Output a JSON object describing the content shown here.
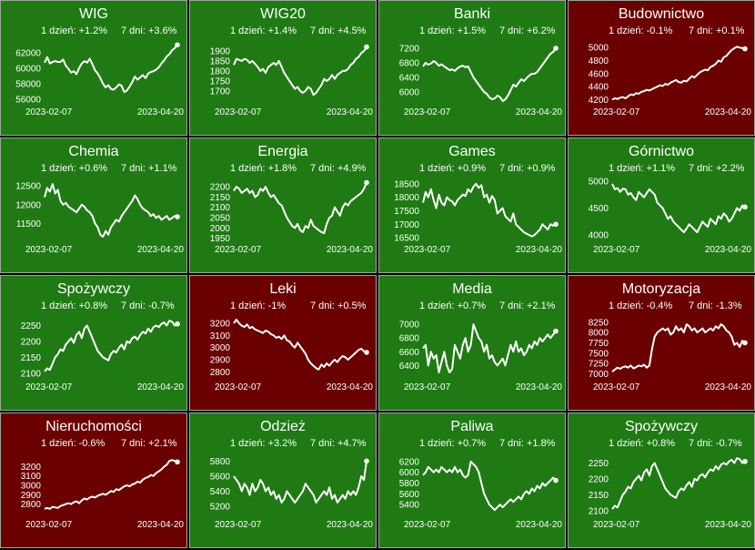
{
  "colors": {
    "up": "#1f7a14",
    "down": "#6a0000",
    "line": "#ffffff",
    "border": "#9aa79a"
  },
  "chart_data": [
    {
      "type": "line",
      "title": "WIG",
      "change_1d": "1 dzień: +1.2%",
      "change_7d": "7 dni: +3.6%",
      "direction": "up",
      "ylim": [
        55500,
        63500
      ],
      "yticks": [
        56000,
        58000,
        60000,
        62000
      ],
      "ytick_labels": [
        "56000",
        "58000",
        "60000",
        "62000"
      ],
      "x_start": "2023-02-07",
      "x_end": "2023-04-20",
      "values": [
        60700,
        61400,
        60600,
        60800,
        60900,
        60800,
        60800,
        61100,
        60300,
        59900,
        59400,
        59600,
        59200,
        60000,
        60600,
        60900,
        60700,
        61200,
        60500,
        59700,
        59300,
        58700,
        58000,
        57500,
        57800,
        57300,
        57200,
        57500,
        57900,
        57700,
        56900,
        57100,
        57600,
        58200,
        58900,
        58500,
        58800,
        59100,
        58700,
        59300,
        59500,
        59600,
        59800,
        60100,
        60600,
        61000,
        61500,
        61800,
        62300,
        62600,
        63000
      ]
    },
    {
      "type": "line",
      "title": "WIG20",
      "change_1d": "1 dzień: +1.4%",
      "change_7d": "7 dni: +4.5%",
      "direction": "up",
      "ylim": [
        1640,
        1950
      ],
      "yticks": [
        1700,
        1750,
        1800,
        1850,
        1900
      ],
      "ytick_labels": [
        "1700",
        "1750",
        "1800",
        "1850",
        "1900"
      ],
      "x_start": "2023-02-07",
      "x_end": "2023-04-20",
      "values": [
        1830,
        1860,
        1855,
        1850,
        1860,
        1855,
        1840,
        1850,
        1835,
        1820,
        1800,
        1810,
        1790,
        1820,
        1830,
        1840,
        1830,
        1850,
        1820,
        1790,
        1770,
        1750,
        1730,
        1710,
        1720,
        1700,
        1690,
        1700,
        1720,
        1710,
        1680,
        1690,
        1710,
        1730,
        1760,
        1750,
        1760,
        1780,
        1760,
        1780,
        1790,
        1800,
        1800,
        1810,
        1830,
        1840,
        1860,
        1870,
        1890,
        1900,
        1920
      ]
    },
    {
      "type": "line",
      "title": "Banki",
      "change_1d": "1 dzień: +1.5%",
      "change_7d": "7 dni: +6.2%",
      "direction": "up",
      "ylim": [
        5700,
        7400
      ],
      "yticks": [
        6000,
        6400,
        6800,
        7200
      ],
      "ytick_labels": [
        "6000",
        "6400",
        "6800",
        "7200"
      ],
      "x_start": "2023-02-07",
      "x_end": "2023-04-20",
      "values": [
        6700,
        6800,
        6750,
        6780,
        6850,
        6800,
        6720,
        6760,
        6700,
        6650,
        6600,
        6620,
        6580,
        6650,
        6700,
        6720,
        6680,
        6700,
        6550,
        6400,
        6300,
        6200,
        6100,
        6000,
        5950,
        5850,
        5800,
        5820,
        5900,
        5860,
        5750,
        5800,
        5900,
        6050,
        6200,
        6150,
        6250,
        6350,
        6300,
        6380,
        6450,
        6500,
        6500,
        6550,
        6650,
        6750,
        6850,
        6950,
        7050,
        7100,
        7200
      ]
    },
    {
      "type": "line",
      "title": "Budownictwo",
      "change_1d": "1 dzień: -0.1%",
      "change_7d": "7 dni: +0.1%",
      "direction": "down",
      "ylim": [
        4150,
        5100
      ],
      "yticks": [
        4200,
        4400,
        4600,
        4800,
        5000
      ],
      "ytick_labels": [
        "4200",
        "4400",
        "4600",
        "4800",
        "5000"
      ],
      "x_start": "2023-02-07",
      "x_end": "2023-04-20",
      "values": [
        4200,
        4220,
        4210,
        4230,
        4240,
        4220,
        4250,
        4280,
        4270,
        4300,
        4290,
        4320,
        4330,
        4350,
        4340,
        4360,
        4380,
        4400,
        4420,
        4410,
        4440,
        4430,
        4460,
        4480,
        4500,
        4470,
        4460,
        4490,
        4480,
        4520,
        4560,
        4540,
        4580,
        4620,
        4640,
        4660,
        4650,
        4700,
        4720,
        4750,
        4800,
        4780,
        4850,
        4870,
        4920,
        4960,
        4990,
        5010,
        5000,
        4990,
        4980
      ]
    },
    {
      "type": "line",
      "title": "Chemia",
      "change_1d": "1 dzień: +0.6%",
      "change_7d": "7 dni: +1.1%",
      "direction": "up",
      "ylim": [
        11050,
        12700
      ],
      "yticks": [
        11500,
        12000,
        12500
      ],
      "ytick_labels": [
        "11500",
        "12000",
        "12500"
      ],
      "x_start": "2023-02-07",
      "x_end": "2023-04-20",
      "values": [
        12200,
        12450,
        12350,
        12550,
        12300,
        12400,
        12100,
        12000,
        12050,
        11950,
        11900,
        11850,
        11800,
        11900,
        12000,
        11950,
        11850,
        11800,
        11700,
        11500,
        11400,
        11200,
        11150,
        11300,
        11200,
        11400,
        11500,
        11600,
        11550,
        11700,
        11800,
        11900,
        12000,
        12100,
        12250,
        12150,
        12000,
        11900,
        11850,
        11800,
        11700,
        11750,
        11650,
        11700,
        11600,
        11650,
        11700,
        11600,
        11650,
        11700,
        11680
      ]
    },
    {
      "type": "line",
      "title": "Energia",
      "change_1d": "1 dzień: +1.8%",
      "change_7d": "7 dni: +4.9%",
      "direction": "up",
      "ylim": [
        1940,
        2240
      ],
      "yticks": [
        1950,
        2000,
        2050,
        2100,
        2150,
        2200
      ],
      "ytick_labels": [
        "1950",
        "2000",
        "2050",
        "2100",
        "2150",
        "2200"
      ],
      "x_start": "2023-02-07",
      "x_end": "2023-04-20",
      "values": [
        2180,
        2200,
        2190,
        2170,
        2180,
        2190,
        2170,
        2180,
        2150,
        2160,
        2190,
        2180,
        2200,
        2170,
        2150,
        2160,
        2140,
        2120,
        2110,
        2080,
        2050,
        2030,
        2010,
        2000,
        2020,
        1990,
        1980,
        2010,
        2000,
        2040,
        2010,
        2000,
        1990,
        1980,
        1975,
        2020,
        2050,
        2060,
        2100,
        2080,
        2060,
        2100,
        2120,
        2110,
        2130,
        2140,
        2150,
        2160,
        2170,
        2190,
        2220
      ]
    },
    {
      "type": "line",
      "title": "Games",
      "change_1d": "1 dzień: +0.9%",
      "change_7d": "7 dni: +0.9%",
      "direction": "up",
      "ylim": [
        16400,
        18700
      ],
      "yticks": [
        16500,
        17000,
        17500,
        18000,
        18500
      ],
      "ytick_labels": [
        "16500",
        "17000",
        "17500",
        "18000",
        "18500"
      ],
      "x_start": "2023-02-07",
      "x_end": "2023-04-20",
      "values": [
        17800,
        18200,
        18000,
        18300,
        17900,
        17600,
        18100,
        17800,
        17700,
        18000,
        17900,
        17850,
        17700,
        17900,
        18000,
        18100,
        18050,
        18300,
        18200,
        18400,
        18500,
        18350,
        18450,
        18000,
        18100,
        17800,
        18050,
        17900,
        17400,
        17500,
        17600,
        17300,
        17200,
        17100,
        17400,
        17000,
        16900,
        16800,
        16700,
        16650,
        16600,
        16550,
        16600,
        16700,
        16800,
        17000,
        16900,
        16800,
        17000,
        16950,
        17000
      ]
    },
    {
      "type": "line",
      "title": "Górnictwo",
      "change_1d": "1 dzień: +1.1%",
      "change_7d": "7 dni: +2.2%",
      "direction": "up",
      "ylim": [
        3900,
        5050
      ],
      "yticks": [
        4000,
        4500,
        5000
      ],
      "ytick_labels": [
        "4000",
        "4500",
        "5000"
      ],
      "x_start": "2023-02-07",
      "x_end": "2023-04-20",
      "values": [
        4950,
        4850,
        4870,
        4800,
        4860,
        4850,
        4750,
        4780,
        4700,
        4650,
        4800,
        4750,
        4700,
        4780,
        4850,
        4800,
        4750,
        4600,
        4550,
        4500,
        4400,
        4300,
        4350,
        4250,
        4200,
        4150,
        4100,
        4050,
        4120,
        4200,
        4150,
        4100,
        4050,
        4150,
        4250,
        4200,
        4150,
        4300,
        4250,
        4200,
        4350,
        4300,
        4400,
        4350,
        4250,
        4300,
        4400,
        4500,
        4450,
        4550,
        4520
      ]
    },
    {
      "type": "line",
      "title": "Spożywczy",
      "change_1d": "1 dzień: +0.8%",
      "change_7d": "7 dni: -0.7%",
      "direction": "up",
      "ylim": [
        2085,
        2280
      ],
      "yticks": [
        2100,
        2150,
        2200,
        2250
      ],
      "ytick_labels": [
        "2100",
        "2150",
        "2200",
        "2250"
      ],
      "x_start": "2023-02-07",
      "x_end": "2023-04-20",
      "values": [
        2105,
        2115,
        2110,
        2130,
        2150,
        2160,
        2175,
        2170,
        2190,
        2200,
        2210,
        2195,
        2220,
        2230,
        2210,
        2240,
        2250,
        2230,
        2210,
        2190,
        2170,
        2160,
        2150,
        2145,
        2140,
        2160,
        2170,
        2165,
        2180,
        2190,
        2175,
        2200,
        2195,
        2210,
        2215,
        2205,
        2220,
        2230,
        2225,
        2240,
        2230,
        2245,
        2250,
        2245,
        2255,
        2260,
        2250,
        2265,
        2262,
        2250,
        2255
      ]
    },
    {
      "type": "line",
      "title": "Leki",
      "change_1d": "1 dzień: -1%",
      "change_7d": "7 dni: +0.5%",
      "direction": "down",
      "ylim": [
        2750,
        3260
      ],
      "yticks": [
        2800,
        2900,
        3000,
        3100,
        3200
      ],
      "ytick_labels": [
        "2800",
        "2900",
        "3000",
        "3100",
        "3200"
      ],
      "x_start": "2023-02-07",
      "x_end": "2023-04-20",
      "values": [
        3200,
        3230,
        3200,
        3180,
        3170,
        3190,
        3160,
        3170,
        3150,
        3140,
        3130,
        3120,
        3140,
        3130,
        3110,
        3100,
        3080,
        3090,
        3070,
        3100,
        3060,
        3050,
        3020,
        3000,
        3040,
        3010,
        2980,
        2950,
        2900,
        2870,
        2850,
        2830,
        2820,
        2860,
        2840,
        2870,
        2850,
        2880,
        2900,
        2880,
        2910,
        2930,
        2920,
        2900,
        2920,
        2940,
        2960,
        2980,
        2990,
        2970,
        2960
      ]
    },
    {
      "type": "line",
      "title": "Media",
      "change_1d": "1 dzień: +0.7%",
      "change_7d": "7 dni: +2.1%",
      "direction": "up",
      "ylim": [
        6220,
        7120
      ],
      "yticks": [
        6400,
        6600,
        6800,
        7000
      ],
      "ytick_labels": [
        "6400",
        "6600",
        "6800",
        "7000"
      ],
      "x_start": "2023-02-07",
      "x_end": "2023-04-20",
      "values": [
        6650,
        6700,
        6400,
        6600,
        6500,
        6550,
        6300,
        6450,
        6600,
        6400,
        6300,
        6350,
        6700,
        6600,
        6500,
        6700,
        6800,
        6600,
        6700,
        7000,
        6900,
        6800,
        6750,
        6600,
        6700,
        6500,
        6550,
        6450,
        6400,
        6450,
        6500,
        6400,
        6550,
        6700,
        6600,
        6750,
        6600,
        6650,
        6550,
        6600,
        6700,
        6650,
        6750,
        6700,
        6800,
        6750,
        6800,
        6850,
        6800,
        6850,
        6900
      ]
    },
    {
      "type": "line",
      "title": "Motoryzacja",
      "change_1d": "1 dzień: -0.4%",
      "change_7d": "7 dni: -1.3%",
      "direction": "down",
      "ylim": [
        6900,
        8400
      ],
      "yticks": [
        7000,
        7250,
        7500,
        7750,
        8000,
        8250
      ],
      "ytick_labels": [
        "7000",
        "7250",
        "7500",
        "7750",
        "8000",
        "8250"
      ],
      "x_start": "2023-02-07",
      "x_end": "2023-04-20",
      "values": [
        7050,
        7100,
        7150,
        7120,
        7160,
        7180,
        7150,
        7200,
        7130,
        7160,
        7200,
        7180,
        7220,
        7150,
        7200,
        7600,
        7900,
        8000,
        8050,
        8100,
        8050,
        8100,
        7950,
        8000,
        8150,
        8050,
        8100,
        8000,
        8200,
        8150,
        8050,
        8100,
        8000,
        8050,
        8100,
        8000,
        8050,
        8100,
        8050,
        8150,
        8100,
        8200,
        8150,
        8050,
        8000,
        7900,
        7700,
        7750,
        7650,
        7800,
        7750
      ]
    },
    {
      "type": "line",
      "title": "Nieruchomości",
      "change_1d": "1 dzień: -0.6%",
      "change_7d": "7 dni: +2.1%",
      "direction": "down",
      "ylim": [
        2680,
        3340
      ],
      "yticks": [
        2800,
        2900,
        3000,
        3100,
        3200
      ],
      "ytick_labels": [
        "2800",
        "2900",
        "3000",
        "3100",
        "3200"
      ],
      "x_start": "2023-02-07",
      "x_end": "2023-04-20",
      "values": [
        2750,
        2760,
        2750,
        2770,
        2765,
        2760,
        2780,
        2790,
        2800,
        2810,
        2800,
        2820,
        2830,
        2810,
        2840,
        2860,
        2850,
        2870,
        2880,
        2870,
        2890,
        2900,
        2910,
        2900,
        2920,
        2940,
        2930,
        2960,
        2950,
        2970,
        2990,
        3000,
        2990,
        3010,
        3020,
        3040,
        3030,
        3060,
        3080,
        3090,
        3110,
        3100,
        3130,
        3150,
        3170,
        3200,
        3220,
        3260,
        3270,
        3260,
        3250
      ]
    },
    {
      "type": "line",
      "title": "Odzież",
      "change_1d": "1 dzień: +3.2%",
      "change_7d": "7 dni: +4.7%",
      "direction": "up",
      "ylim": [
        5080,
        5900
      ],
      "yticks": [
        5200,
        5400,
        5600,
        5800
      ],
      "ytick_labels": [
        "5200",
        "5400",
        "5600",
        "5800"
      ],
      "x_start": "2023-02-07",
      "x_end": "2023-04-20",
      "values": [
        5600,
        5550,
        5500,
        5400,
        5500,
        5450,
        5350,
        5500,
        5400,
        5450,
        5550,
        5500,
        5400,
        5450,
        5350,
        5400,
        5300,
        5350,
        5250,
        5300,
        5400,
        5350,
        5300,
        5250,
        5300,
        5350,
        5400,
        5500,
        5450,
        5400,
        5350,
        5250,
        5300,
        5350,
        5400,
        5350,
        5450,
        5300,
        5350,
        5250,
        5300,
        5350,
        5300,
        5400,
        5350,
        5400,
        5350,
        5450,
        5600,
        5550,
        5800
      ]
    },
    {
      "type": "line",
      "title": "Paliwa",
      "change_1d": "1 dzień: +0.7%",
      "change_7d": "7 dni: +1.8%",
      "direction": "up",
      "ylim": [
        5200,
        6350
      ],
      "yticks": [
        5400,
        5600,
        5800,
        6000,
        6200
      ],
      "ytick_labels": [
        "5400",
        "5600",
        "5800",
        "6000",
        "6200"
      ],
      "x_start": "2023-02-07",
      "x_end": "2023-04-20",
      "values": [
        5950,
        6000,
        6100,
        6050,
        6000,
        6050,
        6000,
        6100,
        6050,
        6000,
        6050,
        6000,
        6100,
        6000,
        6050,
        5950,
        5900,
        5950,
        6200,
        6150,
        6100,
        6000,
        5800,
        5600,
        5500,
        5400,
        5350,
        5300,
        5350,
        5400,
        5350,
        5400,
        5450,
        5500,
        5450,
        5500,
        5550,
        5500,
        5600,
        5650,
        5600,
        5700,
        5650,
        5750,
        5700,
        5800,
        5750,
        5800,
        5850,
        5900,
        5850
      ]
    },
    {
      "type": "line",
      "title": "Spożywczy",
      "change_1d": "1 dzień: +0.8%",
      "change_7d": "7 dni: -0.7%",
      "direction": "up",
      "ylim": [
        2085,
        2280
      ],
      "yticks": [
        2100,
        2150,
        2200,
        2250
      ],
      "ytick_labels": [
        "2100",
        "2150",
        "2200",
        "2250"
      ],
      "x_start": "2023-02-07",
      "x_end": "2023-04-20",
      "values": [
        2105,
        2115,
        2110,
        2130,
        2150,
        2160,
        2175,
        2170,
        2190,
        2200,
        2210,
        2195,
        2220,
        2230,
        2210,
        2240,
        2250,
        2230,
        2210,
        2190,
        2170,
        2160,
        2150,
        2145,
        2140,
        2160,
        2170,
        2165,
        2180,
        2190,
        2175,
        2200,
        2195,
        2210,
        2215,
        2205,
        2220,
        2230,
        2225,
        2240,
        2230,
        2245,
        2250,
        2245,
        2255,
        2260,
        2250,
        2265,
        2262,
        2250,
        2255
      ]
    }
  ]
}
